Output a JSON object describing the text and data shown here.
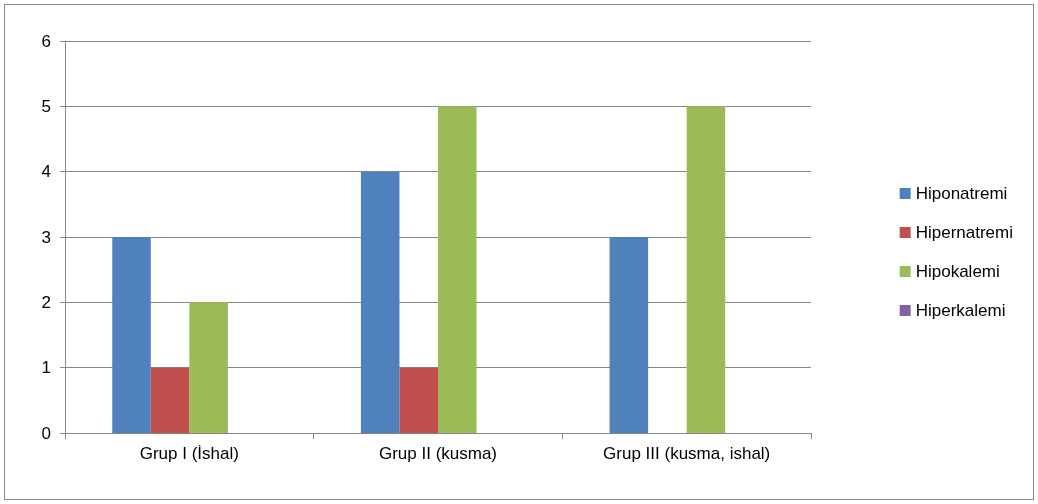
{
  "chart_data": {
    "type": "bar",
    "categories": [
      "Grup I (İshal)",
      "Grup II (kusma)",
      "Grup III (kusma, ishal)"
    ],
    "series": [
      {
        "name": "Hiponatremi",
        "color": "#4f81bd",
        "values": [
          3,
          4,
          3
        ]
      },
      {
        "name": "Hipernatremi",
        "color": "#c0504d",
        "values": [
          1,
          1,
          0
        ]
      },
      {
        "name": "Hipokalemi",
        "color": "#9bbb59",
        "values": [
          2,
          5,
          5
        ]
      },
      {
        "name": "Hiperkalemi",
        "color": "#8064a2",
        "values": [
          0,
          0,
          0
        ]
      }
    ],
    "ylim": [
      0,
      6
    ],
    "yticks": [
      0,
      1,
      2,
      3,
      4,
      5,
      6
    ],
    "grid": "y",
    "legend": "right"
  }
}
